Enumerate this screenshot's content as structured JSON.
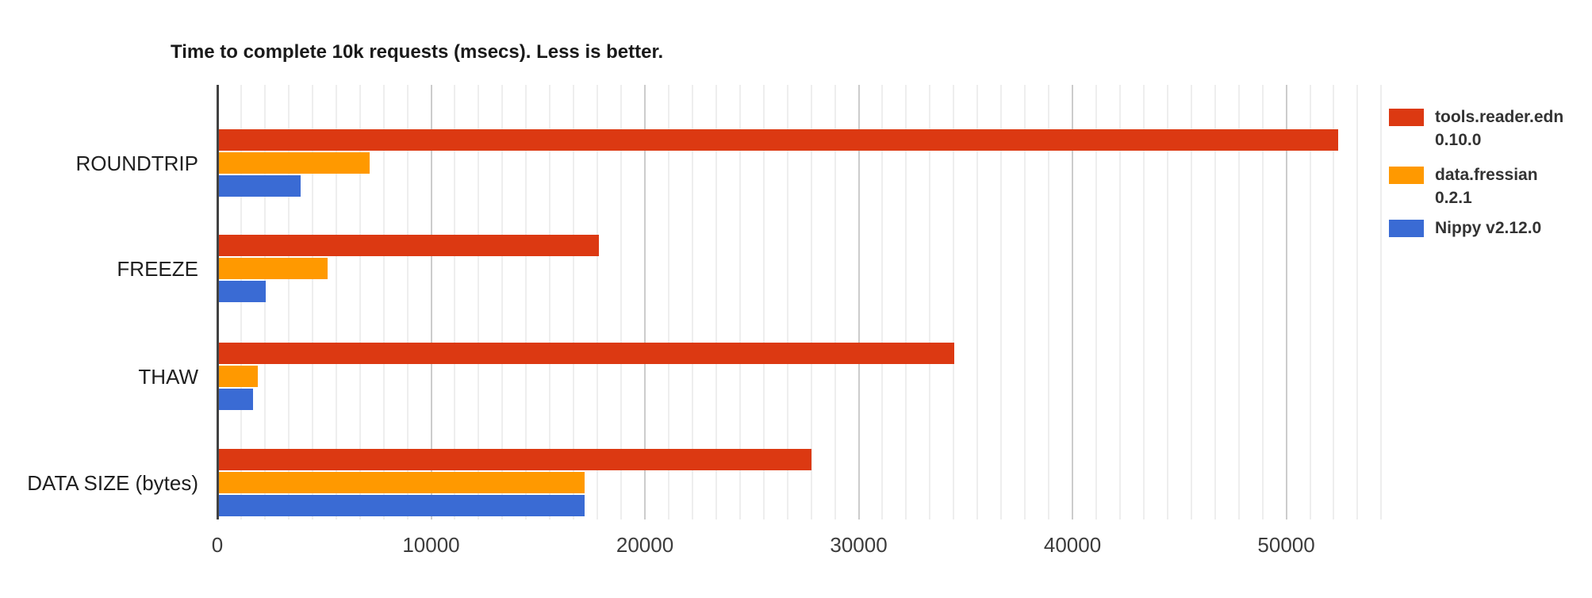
{
  "chart_data": {
    "type": "bar",
    "orientation": "horizontal",
    "title": "Time to complete 10k requests (msecs). Less is better.",
    "categories": [
      "ROUNDTRIP",
      "FREEZE",
      "THAW",
      "DATA SIZE (bytes)"
    ],
    "series": [
      {
        "name": "tools.reader.edn 0.10.0",
        "legend_lines": [
          "tools.reader.edn",
          "0.10.0"
        ],
        "color": "#dc3912",
        "values": [
          52350,
          17780,
          34400,
          27710
        ]
      },
      {
        "name": "data.fressian 0.2.1",
        "legend_lines": [
          "data.fressian",
          "0.2.1"
        ],
        "color": "#ff9900",
        "values": [
          7050,
          5080,
          1820,
          17100
        ]
      },
      {
        "name": "Nippy v2.12.0",
        "legend_lines": [
          "Nippy v2.12.0"
        ],
        "color": "#3a6bd4",
        "values": [
          3820,
          2190,
          1600,
          17100
        ]
      }
    ],
    "x_axis": {
      "min": 0,
      "max": 54580,
      "tick_step": 10000,
      "tick_values": [
        0,
        10000,
        20000,
        30000,
        40000,
        50000
      ],
      "tick_labels": [
        "0",
        "10000",
        "20000",
        "30000",
        "40000",
        "50000"
      ],
      "minor_gridlines_per_major": 8
    },
    "legend_position": "right",
    "grid": true,
    "colors": {
      "axis_line": "#424242",
      "major_gridline": "#cccccc",
      "minor_gridline": "#eeeeee",
      "title_text": "#1a1a1a",
      "category_text": "#1f1f1f",
      "tick_text": "#3c3c3c",
      "legend_text": "#333333",
      "background": "#ffffff"
    }
  }
}
